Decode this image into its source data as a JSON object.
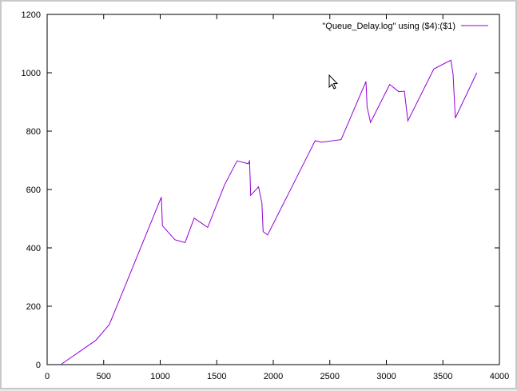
{
  "chart_data": {
    "type": "line",
    "title": "",
    "xlabel": "",
    "ylabel": "",
    "xlim": [
      0,
      4000
    ],
    "ylim": [
      0,
      1200
    ],
    "xticks": [
      0,
      500,
      1000,
      1500,
      2000,
      2500,
      3000,
      3500,
      4000
    ],
    "yticks": [
      0,
      200,
      400,
      600,
      800,
      1000,
      1200
    ],
    "grid": false,
    "legend_position": "top-right",
    "series": [
      {
        "name": "\"Queue_Delay.log\" using ($4):($1)",
        "color": "#9400d3",
        "x": [
          120,
          430,
          550,
          1010,
          1020,
          1130,
          1220,
          1300,
          1420,
          1570,
          1680,
          1780,
          1790,
          1800,
          1870,
          1900,
          1910,
          1950,
          2370,
          2430,
          2600,
          2820,
          2830,
          2860,
          3030,
          3110,
          3160,
          3190,
          3420,
          3570,
          3590,
          3610,
          3800
        ],
        "y": [
          0,
          83,
          137,
          574,
          476,
          428,
          418,
          502,
          470,
          617,
          698,
          688,
          700,
          580,
          609,
          553,
          456,
          444,
          767,
          762,
          771,
          970,
          883,
          830,
          960,
          935,
          937,
          835,
          1013,
          1043,
          995,
          845,
          1000
        ]
      }
    ]
  }
}
